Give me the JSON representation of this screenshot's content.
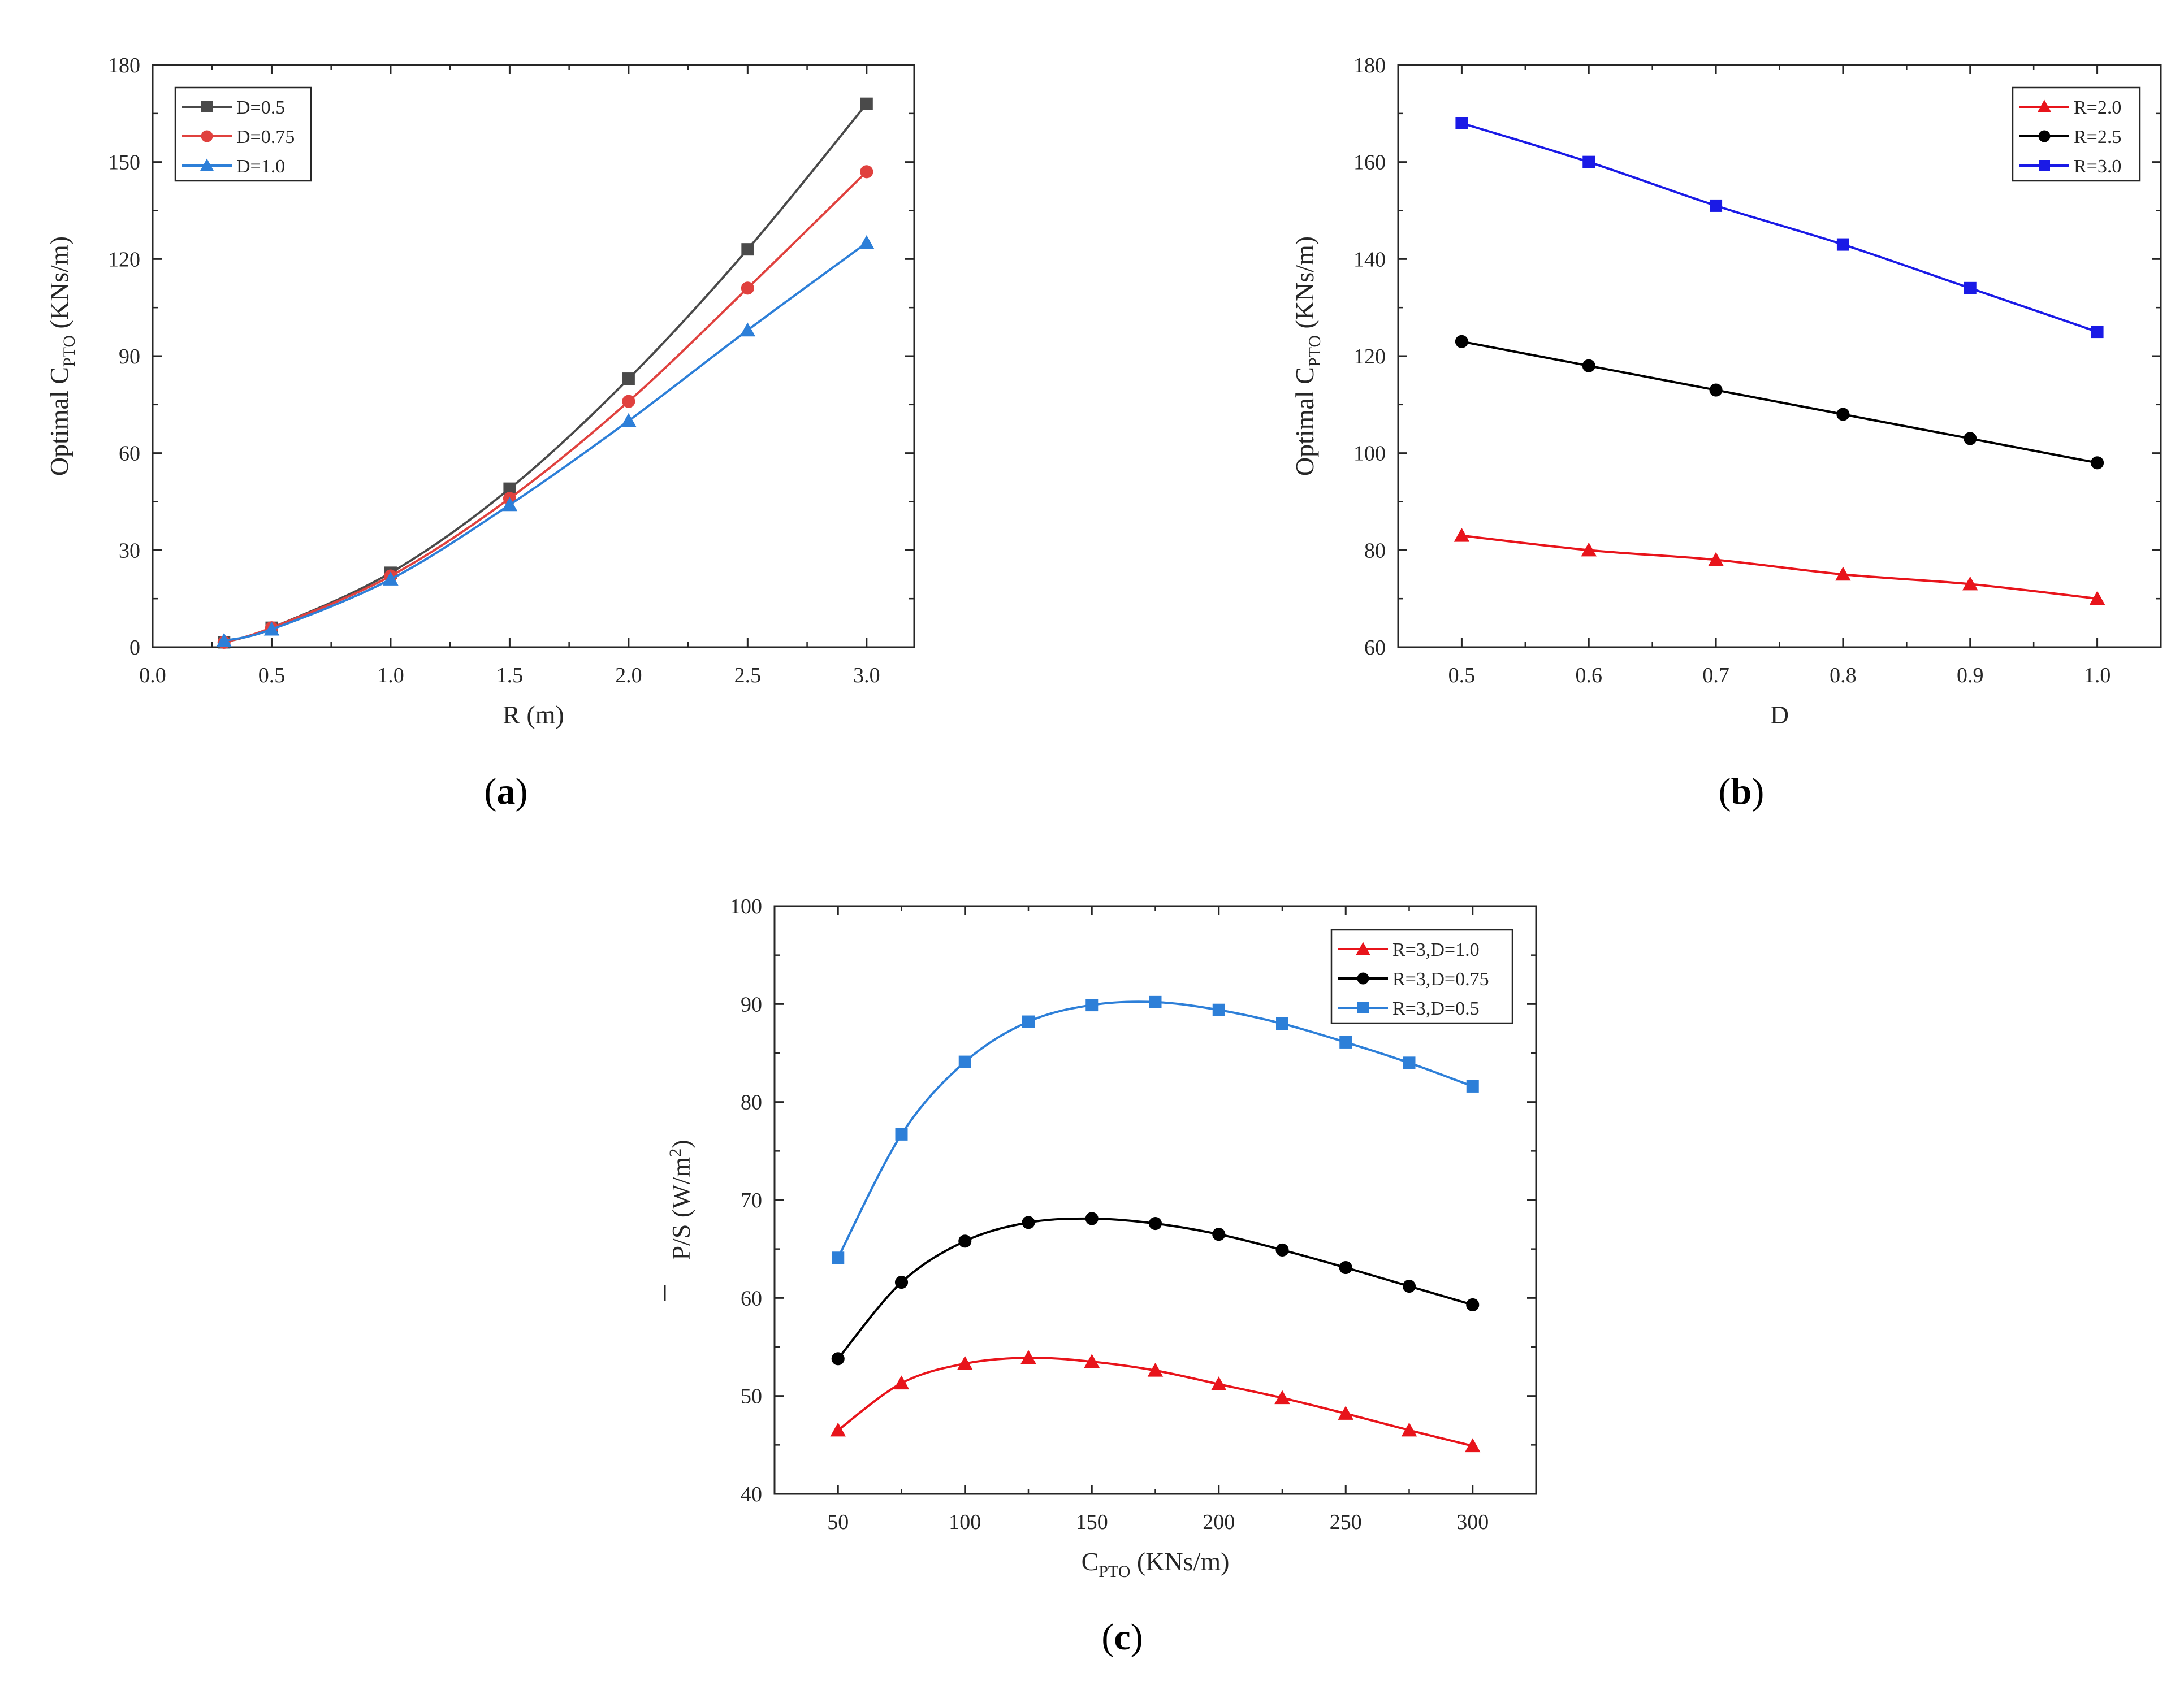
{
  "chart_data": [
    {
      "id": "a",
      "type": "line",
      "panel_label": "a",
      "xlabel": "R (m)",
      "ylabel_pre": "Optimal C",
      "ylabel_sub": "PTO",
      "ylabel_post": " (KNs/m)",
      "xlim": [
        0.0,
        3.2
      ],
      "ylim": [
        0,
        180
      ],
      "xticks": [
        0.0,
        0.5,
        1.0,
        1.5,
        2.0,
        2.5,
        3.0
      ],
      "xtick_labels": [
        "0.0",
        "0.5",
        "1.0",
        "1.5",
        "2.0",
        "2.5",
        "3.0"
      ],
      "yticks": [
        0,
        30,
        60,
        90,
        120,
        150,
        180
      ],
      "ytick_labels": [
        "0",
        "30",
        "60",
        "90",
        "120",
        "150",
        "180"
      ],
      "legend_position": "top-left",
      "series": [
        {
          "name": "D=0.5",
          "color": "#4a4a4a",
          "marker": "square",
          "x": [
            0.3,
            0.5,
            1.0,
            1.5,
            2.0,
            2.5,
            3.0
          ],
          "values": [
            1.5,
            6,
            23,
            49,
            83,
            123,
            168
          ]
        },
        {
          "name": "D=0.75",
          "color": "#e0413e",
          "marker": "circle",
          "x": [
            0.3,
            0.5,
            1.0,
            1.5,
            2.0,
            2.5,
            3.0
          ],
          "values": [
            1.5,
            6,
            22,
            46,
            76,
            111,
            147
          ]
        },
        {
          "name": "D=1.0",
          "color": "#2d7fd8",
          "marker": "triangle",
          "x": [
            0.3,
            0.5,
            1.0,
            1.5,
            2.0,
            2.5,
            3.0
          ],
          "values": [
            2,
            5.5,
            21,
            44,
            70,
            98,
            125
          ]
        }
      ]
    },
    {
      "id": "b",
      "type": "line",
      "panel_label": "b",
      "xlabel": "D",
      "ylabel_pre": "Optimal C",
      "ylabel_sub": "PTO",
      "ylabel_post": " (KNs/m)",
      "xlim": [
        0.45,
        1.05
      ],
      "ylim": [
        60,
        180
      ],
      "xticks": [
        0.5,
        0.6,
        0.7,
        0.8,
        0.9,
        1.0
      ],
      "xtick_labels": [
        "0.5",
        "0.6",
        "0.7",
        "0.8",
        "0.9",
        "1.0"
      ],
      "yticks": [
        60,
        80,
        100,
        120,
        140,
        160,
        180
      ],
      "ytick_labels": [
        "60",
        "80",
        "100",
        "120",
        "140",
        "160",
        "180"
      ],
      "legend_position": "top-right",
      "series": [
        {
          "name": "R=2.0",
          "color": "#e8141b",
          "marker": "triangle",
          "x": [
            0.5,
            0.6,
            0.7,
            0.8,
            0.9,
            1.0
          ],
          "values": [
            83,
            80,
            78,
            75,
            73,
            70
          ]
        },
        {
          "name": "R=2.5",
          "color": "#000000",
          "marker": "circle",
          "x": [
            0.5,
            0.6,
            0.7,
            0.8,
            0.9,
            1.0
          ],
          "values": [
            123,
            118,
            113,
            108,
            103,
            98
          ]
        },
        {
          "name": "R=3.0",
          "color": "#1a1ae6",
          "marker": "square",
          "x": [
            0.5,
            0.6,
            0.7,
            0.8,
            0.9,
            1.0
          ],
          "values": [
            168,
            160,
            151,
            143,
            134,
            125
          ]
        }
      ]
    },
    {
      "id": "c",
      "type": "line",
      "panel_label": "c",
      "xlabel_pre": "C",
      "xlabel_sub": "PTO",
      "xlabel_post": " (KNs/m)",
      "ylabel_pre": "P/S (W/m",
      "ylabel_sup": "2",
      "ylabel_post": ")",
      "xlim": [
        25,
        325
      ],
      "ylim": [
        40,
        100
      ],
      "xticks": [
        50,
        100,
        150,
        200,
        250,
        300
      ],
      "xtick_labels": [
        "50",
        "100",
        "150",
        "200",
        "250",
        "300"
      ],
      "yticks": [
        40,
        50,
        60,
        70,
        80,
        90,
        100
      ],
      "ytick_labels": [
        "40",
        "50",
        "60",
        "70",
        "80",
        "90",
        "100"
      ],
      "legend_position": "top-right",
      "series": [
        {
          "name": "R=3,D=1.0",
          "color": "#e8141b",
          "marker": "triangle",
          "x": [
            50,
            75,
            100,
            125,
            150,
            175,
            200,
            225,
            250,
            275,
            300
          ],
          "values": [
            46.5,
            51.3,
            53.3,
            53.9,
            53.5,
            52.6,
            51.2,
            49.8,
            48.2,
            46.5,
            44.9
          ]
        },
        {
          "name": "R=3,D=0.75",
          "color": "#000000",
          "marker": "circle",
          "x": [
            50,
            75,
            100,
            125,
            150,
            175,
            200,
            225,
            250,
            275,
            300
          ],
          "values": [
            53.8,
            61.6,
            65.8,
            67.7,
            68.1,
            67.6,
            66.5,
            64.9,
            63.1,
            61.2,
            59.3
          ]
        },
        {
          "name": "R=3,D=0.5",
          "color": "#2d7fd8",
          "marker": "square",
          "x": [
            50,
            75,
            100,
            125,
            150,
            175,
            200,
            225,
            250,
            275,
            300
          ],
          "values": [
            64.1,
            76.7,
            84.1,
            88.2,
            89.9,
            90.2,
            89.4,
            88.0,
            86.1,
            84.0,
            81.6
          ]
        }
      ]
    }
  ]
}
